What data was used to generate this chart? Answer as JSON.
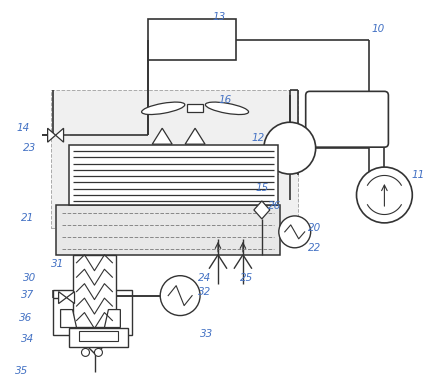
{
  "line_color": "#333333",
  "label_color": "#4472C4",
  "bg_color": "#ffffff",
  "lw": 1.0,
  "fig_width": 4.4,
  "fig_height": 3.84,
  "dpi": 100
}
